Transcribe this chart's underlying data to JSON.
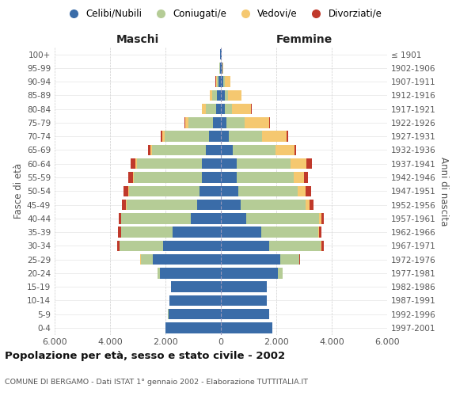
{
  "age_groups": [
    "0-4",
    "5-9",
    "10-14",
    "15-19",
    "20-24",
    "25-29",
    "30-34",
    "35-39",
    "40-44",
    "45-49",
    "50-54",
    "55-59",
    "60-64",
    "65-69",
    "70-74",
    "75-79",
    "80-84",
    "85-89",
    "90-94",
    "95-99",
    "100+"
  ],
  "birth_years": [
    "1997-2001",
    "1992-1996",
    "1987-1991",
    "1982-1986",
    "1977-1981",
    "1972-1976",
    "1967-1971",
    "1962-1966",
    "1957-1961",
    "1952-1956",
    "1947-1951",
    "1942-1946",
    "1937-1941",
    "1932-1936",
    "1927-1931",
    "1922-1926",
    "1917-1921",
    "1912-1916",
    "1907-1911",
    "1902-1906",
    "≤ 1901"
  ],
  "maschi": {
    "celibi": [
      2000,
      1900,
      1850,
      1800,
      2200,
      2450,
      2100,
      1750,
      1100,
      850,
      760,
      700,
      680,
      540,
      430,
      280,
      160,
      130,
      80,
      40,
      20
    ],
    "coniugati": [
      1,
      1,
      3,
      8,
      90,
      450,
      1550,
      1850,
      2500,
      2550,
      2550,
      2450,
      2350,
      1950,
      1600,
      900,
      380,
      180,
      70,
      18,
      8
    ],
    "vedovi": [
      0,
      0,
      0,
      1,
      1,
      2,
      4,
      8,
      12,
      18,
      25,
      35,
      45,
      55,
      75,
      95,
      140,
      90,
      35,
      8,
      4
    ],
    "divorziati": [
      0,
      0,
      1,
      2,
      8,
      18,
      75,
      95,
      75,
      140,
      190,
      170,
      180,
      95,
      75,
      38,
      18,
      8,
      4,
      2,
      1
    ]
  },
  "femmine": {
    "nubili": [
      1850,
      1750,
      1650,
      1650,
      2050,
      2150,
      1750,
      1450,
      900,
      720,
      620,
      570,
      560,
      420,
      290,
      190,
      140,
      130,
      90,
      45,
      18
    ],
    "coniugate": [
      1,
      1,
      4,
      12,
      170,
      680,
      1850,
      2050,
      2650,
      2350,
      2150,
      2050,
      1950,
      1550,
      1200,
      660,
      270,
      130,
      50,
      12,
      4
    ],
    "vedove": [
      0,
      0,
      0,
      1,
      4,
      8,
      25,
      45,
      90,
      140,
      290,
      380,
      580,
      680,
      880,
      880,
      680,
      480,
      190,
      28,
      8
    ],
    "divorziate": [
      0,
      0,
      1,
      1,
      8,
      12,
      75,
      95,
      75,
      120,
      190,
      140,
      190,
      75,
      55,
      38,
      18,
      8,
      4,
      2,
      1
    ]
  },
  "colors": {
    "celibi_nubili": "#3a6ca8",
    "coniugati_e": "#b5cc96",
    "vedovi_e": "#f5c870",
    "divorziati_e": "#c0392b"
  },
  "xlim": 6000,
  "xticks": [
    -6000,
    -4000,
    -2000,
    0,
    2000,
    4000,
    6000
  ],
  "xticklabels": [
    "6.000",
    "4.000",
    "2.000",
    "0",
    "2.000",
    "4.000",
    "6.000"
  ],
  "title": "Popolazione per età, sesso e stato civile - 2002",
  "subtitle": "COMUNE DI BERGAMO - Dati ISTAT 1° gennaio 2002 - Elaborazione TUTTITALIA.IT",
  "ylabel_left": "Fasce di età",
  "ylabel_right": "Anni di nascita",
  "header_maschi": "Maschi",
  "header_femmine": "Femmine",
  "legend_labels": [
    "Celibi/Nubili",
    "Coniugati/e",
    "Vedovi/e",
    "Divorziati/e"
  ]
}
